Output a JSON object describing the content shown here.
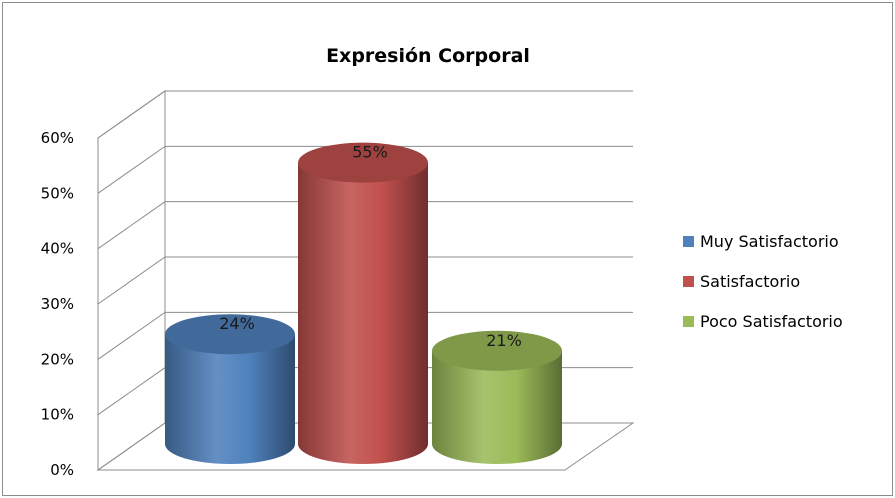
{
  "chart_data": {
    "type": "bar",
    "style": "3d-cylinder",
    "title": "Expresión Corporal",
    "categories": [
      "Muy Satisfactorio",
      "Satisfactorio",
      "Poco Satisfactorio"
    ],
    "values": [
      24,
      55,
      21
    ],
    "data_labels": [
      "24%",
      "55%",
      "21%"
    ],
    "colors": [
      "#4f81bd",
      "#c0504d",
      "#9bbb59"
    ],
    "ylim": [
      0,
      60
    ],
    "yticks": [
      0,
      10,
      20,
      30,
      40,
      50,
      60
    ],
    "ytick_labels": [
      "0%",
      "10%",
      "20%",
      "30%",
      "40%",
      "50%",
      "60%"
    ],
    "grid": true,
    "legend": {
      "placement": "right",
      "entries": [
        "Muy Satisfactorio",
        "Satisfactorio",
        "Poco Satisfactorio"
      ]
    }
  }
}
